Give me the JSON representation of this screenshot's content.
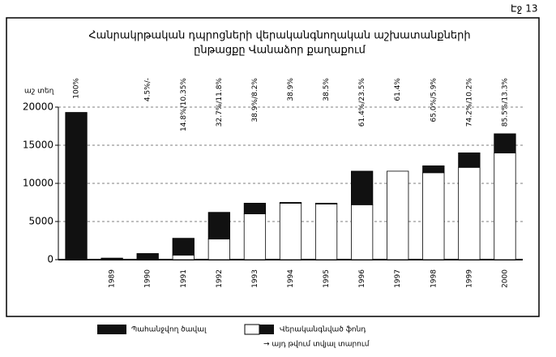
{
  "page_label": "Էջ 13",
  "chart_data": {
    "type": "stacked-bar",
    "title": "Հանրակրթական դպրոցների վերականգնողական աշխատանքների",
    "subtitle": "ընթացքը Վանաձոր քաղաքում",
    "ylabel": "աշ տեղ",
    "categories": [
      null,
      "1989",
      "1990",
      "1991",
      "1992",
      "1993",
      "1994",
      "1995",
      "1996",
      "1997",
      "1998",
      "1999",
      "2000"
    ],
    "series": [
      {
        "name": "Վերականգնված ֆոնդ",
        "color": "#ffffff",
        "values": [
          0,
          0,
          0,
          600,
          2700,
          6000,
          7400,
          7300,
          7200,
          11600,
          11400,
          12100,
          14000
        ]
      },
      {
        "name": "Պահանջվող ծավալ",
        "color": "#111111",
        "values": [
          19300,
          200,
          800,
          2200,
          3500,
          1400,
          100,
          100,
          4400,
          0,
          900,
          1900,
          2500
        ]
      }
    ],
    "annotations": [
      "100%",
      null,
      "4.5%/-",
      "14.8%/10.35%",
      "32.7%/11.8%",
      "38.9%/8.2%",
      "38.9%",
      "38.5%",
      "61.4%/23.5%",
      "61.4%",
      "65.0%/5.9%",
      "74.2%/10.2%",
      "85.5%/13.3%"
    ],
    "legend_note": "→ այդ թվում տվյալ տարում",
    "ylim": [
      0,
      20000
    ],
    "yticks": [
      0,
      5000,
      10000,
      15000,
      20000
    ],
    "grid": true
  }
}
